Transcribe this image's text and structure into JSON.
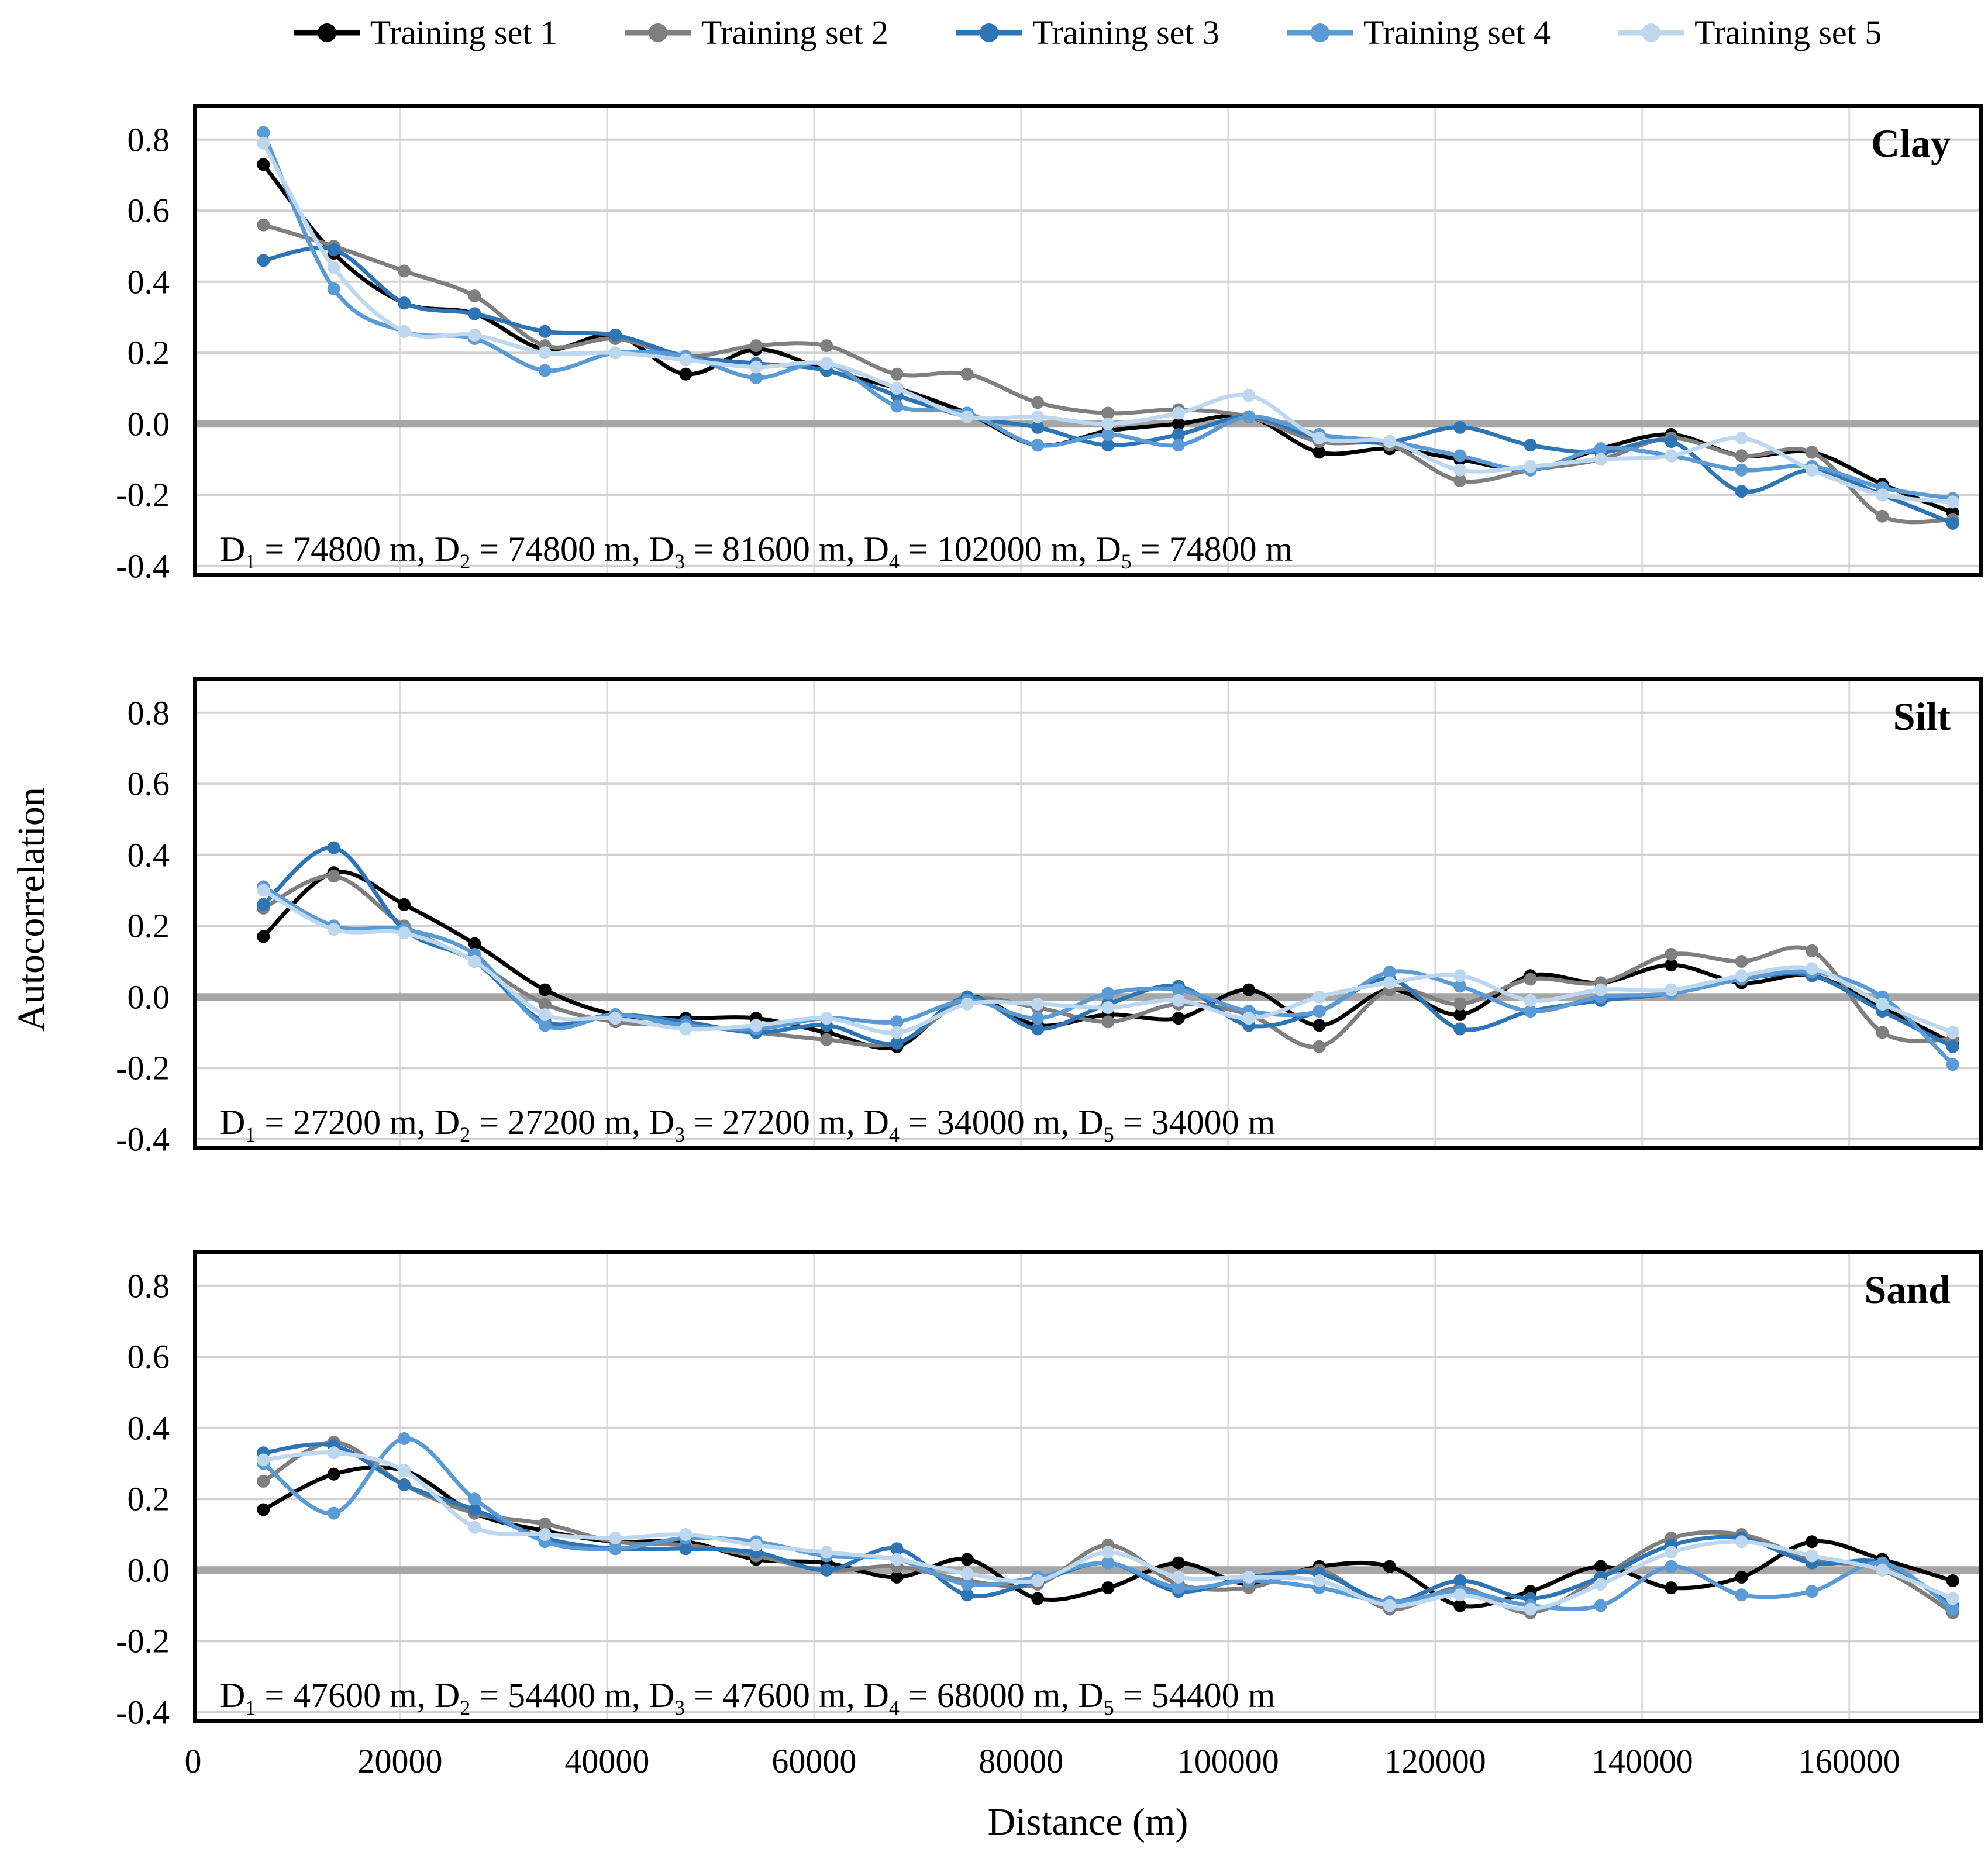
{
  "chart_data": {
    "type": "line",
    "xlabel": "Distance (m)",
    "ylabel": "Autocorrelation",
    "xlim": [
      0,
      172900
    ],
    "ylim": [
      -0.43,
      0.9
    ],
    "grid": true,
    "colors": {
      "grid_vertical": "#dcdcdc",
      "grid_horizontal": "#d2d2d2",
      "zero_line": "#a6a6a6",
      "axis_border": "#000000"
    },
    "x_ticks": [
      {
        "label": "0",
        "value": 0
      },
      {
        "label": "20000",
        "value": 20000
      },
      {
        "label": "40000",
        "value": 40000
      },
      {
        "label": "60000",
        "value": 60000
      },
      {
        "label": "80000",
        "value": 80000
      },
      {
        "label": "100000",
        "value": 100000
      },
      {
        "label": "120000",
        "value": 120000
      },
      {
        "label": "140000",
        "value": 140000
      },
      {
        "label": "160000",
        "value": 160000
      }
    ],
    "y_ticks": [
      {
        "label": "0.8",
        "value": 0.8
      },
      {
        "label": "0.6",
        "value": 0.6
      },
      {
        "label": "0.4",
        "value": 0.4
      },
      {
        "label": "0.2",
        "value": 0.2
      },
      {
        "label": "0.0",
        "value": 0.0
      },
      {
        "label": "-0.2",
        "value": -0.2
      },
      {
        "label": "-0.4",
        "value": -0.4
      }
    ],
    "legend": {
      "position": "top",
      "entries": [
        {
          "label": "Training set 1",
          "color": "#000000"
        },
        {
          "label": "Training set 2",
          "color": "#7f7f7f"
        },
        {
          "label": "Training set 3",
          "color": "#2e75b6"
        },
        {
          "label": "Training set 4",
          "color": "#5b9bd5"
        },
        {
          "label": "Training set 5",
          "color": "#bdd7ee"
        }
      ]
    },
    "x": [
      6800,
      13600,
      20400,
      27200,
      34000,
      40800,
      47600,
      54400,
      61200,
      68000,
      74800,
      81600,
      88400,
      95200,
      102000,
      108800,
      115600,
      122400,
      129200,
      136000,
      142800,
      149600,
      156400,
      163200,
      170000
    ],
    "panels": [
      {
        "title": "Clay",
        "d_values": [
          "74800 m",
          "74800 m",
          "81600 m",
          "102000 m",
          "74800 m"
        ],
        "series": [
          {
            "name": "Training set 1",
            "color": "#000000",
            "values": [
              0.73,
              0.48,
              0.34,
              0.31,
              0.21,
              0.25,
              0.14,
              0.21,
              0.15,
              0.1,
              0.03,
              -0.06,
              -0.02,
              0.0,
              0.02,
              -0.08,
              -0.07,
              -0.1,
              -0.13,
              -0.07,
              -0.03,
              -0.09,
              -0.08,
              -0.17,
              -0.25
            ]
          },
          {
            "name": "Training set 2",
            "color": "#7f7f7f",
            "values": [
              0.56,
              0.5,
              0.43,
              0.36,
              0.22,
              0.24,
              0.19,
              0.22,
              0.22,
              0.14,
              0.14,
              0.06,
              0.03,
              0.04,
              0.02,
              -0.05,
              -0.06,
              -0.16,
              -0.13,
              -0.1,
              -0.04,
              -0.09,
              -0.08,
              -0.26,
              -0.27
            ]
          },
          {
            "name": "Training set 3",
            "color": "#2e75b6",
            "values": [
              0.46,
              0.49,
              0.34,
              0.31,
              0.26,
              0.25,
              0.19,
              0.17,
              0.15,
              0.08,
              0.02,
              -0.01,
              -0.06,
              -0.03,
              0.02,
              -0.04,
              -0.05,
              -0.01,
              -0.06,
              -0.08,
              -0.05,
              -0.19,
              -0.13,
              -0.2,
              -0.28
            ]
          },
          {
            "name": "Training set 4",
            "color": "#5b9bd5",
            "values": [
              0.82,
              0.38,
              0.26,
              0.24,
              0.15,
              0.2,
              0.19,
              0.13,
              0.17,
              0.05,
              0.03,
              -0.06,
              -0.03,
              -0.06,
              0.02,
              -0.03,
              -0.05,
              -0.09,
              -0.13,
              -0.07,
              -0.09,
              -0.13,
              -0.12,
              -0.18,
              -0.21
            ]
          },
          {
            "name": "Training set 5",
            "color": "#bdd7ee",
            "values": [
              0.79,
              0.44,
              0.26,
              0.25,
              0.2,
              0.2,
              0.18,
              0.16,
              0.17,
              0.1,
              0.02,
              0.02,
              0.0,
              0.03,
              0.08,
              -0.04,
              -0.05,
              -0.13,
              -0.12,
              -0.1,
              -0.09,
              -0.04,
              -0.13,
              -0.2,
              -0.22
            ]
          }
        ]
      },
      {
        "title": "Silt",
        "d_values": [
          "27200 m",
          "27200 m",
          "27200 m",
          "34000 m",
          "34000 m"
        ],
        "series": [
          {
            "name": "Training set 1",
            "color": "#000000",
            "values": [
              0.17,
              0.35,
              0.26,
              0.15,
              0.02,
              -0.05,
              -0.06,
              -0.06,
              -0.1,
              -0.14,
              0.0,
              -0.08,
              -0.05,
              -0.06,
              0.02,
              -0.08,
              0.02,
              -0.05,
              0.06,
              0.04,
              0.09,
              0.04,
              0.06,
              -0.03,
              -0.13
            ]
          },
          {
            "name": "Training set 2",
            "color": "#7f7f7f",
            "values": [
              0.25,
              0.34,
              0.2,
              0.1,
              -0.02,
              -0.07,
              -0.08,
              -0.1,
              -0.12,
              -0.13,
              -0.01,
              -0.03,
              -0.07,
              -0.02,
              -0.05,
              -0.14,
              0.02,
              -0.02,
              0.05,
              0.04,
              0.12,
              0.1,
              0.13,
              -0.1,
              -0.12
            ]
          },
          {
            "name": "Training set 3",
            "color": "#2e75b6",
            "values": [
              0.26,
              0.42,
              0.19,
              0.1,
              -0.07,
              -0.05,
              -0.07,
              -0.1,
              -0.08,
              -0.13,
              0.0,
              -0.09,
              -0.02,
              0.03,
              -0.08,
              -0.04,
              0.05,
              -0.09,
              -0.04,
              -0.01,
              0.01,
              0.05,
              0.06,
              -0.04,
              -0.14
            ]
          },
          {
            "name": "Training set 4",
            "color": "#5b9bd5",
            "values": [
              0.31,
              0.2,
              0.19,
              0.12,
              -0.08,
              -0.05,
              -0.08,
              -0.09,
              -0.06,
              -0.07,
              -0.01,
              -0.06,
              0.01,
              0.02,
              -0.04,
              -0.04,
              0.07,
              0.03,
              -0.04,
              0.0,
              0.01,
              0.05,
              0.07,
              0.0,
              -0.19
            ]
          },
          {
            "name": "Training set 5",
            "color": "#bdd7ee",
            "values": [
              0.3,
              0.19,
              0.18,
              0.1,
              -0.05,
              -0.06,
              -0.09,
              -0.08,
              -0.06,
              -0.1,
              -0.02,
              -0.02,
              -0.03,
              -0.01,
              -0.06,
              0.0,
              0.04,
              0.06,
              -0.01,
              0.02,
              0.02,
              0.06,
              0.08,
              -0.02,
              -0.1
            ]
          }
        ]
      },
      {
        "title": "Sand",
        "d_values": [
          "47600 m",
          "54400 m",
          "47600 m",
          "68000 m",
          "54400 m"
        ],
        "series": [
          {
            "name": "Training set 1",
            "color": "#000000",
            "values": [
              0.17,
              0.27,
              0.28,
              0.16,
              0.11,
              0.08,
              0.08,
              0.03,
              0.02,
              -0.02,
              0.03,
              -0.08,
              -0.05,
              0.02,
              -0.04,
              0.01,
              0.01,
              -0.1,
              -0.06,
              0.01,
              -0.05,
              -0.02,
              0.08,
              0.03,
              -0.03
            ]
          },
          {
            "name": "Training set 2",
            "color": "#7f7f7f",
            "values": [
              0.25,
              0.36,
              0.24,
              0.16,
              0.13,
              0.08,
              0.07,
              0.04,
              0.0,
              0.01,
              -0.03,
              -0.04,
              0.07,
              -0.04,
              -0.05,
              0.0,
              -0.11,
              -0.05,
              -0.12,
              -0.02,
              0.09,
              0.1,
              0.03,
              0.0,
              -0.12
            ]
          },
          {
            "name": "Training set 3",
            "color": "#2e75b6",
            "values": [
              0.33,
              0.35,
              0.24,
              0.17,
              0.09,
              0.06,
              0.06,
              0.05,
              0.0,
              0.06,
              -0.07,
              -0.03,
              0.02,
              -0.06,
              -0.02,
              -0.01,
              -0.09,
              -0.03,
              -0.08,
              -0.02,
              0.07,
              0.09,
              0.02,
              0.02,
              -0.1
            ]
          },
          {
            "name": "Training set 4",
            "color": "#5b9bd5",
            "values": [
              0.3,
              0.16,
              0.37,
              0.2,
              0.08,
              0.06,
              0.09,
              0.08,
              0.04,
              0.03,
              -0.04,
              -0.02,
              0.02,
              -0.05,
              -0.03,
              -0.05,
              -0.09,
              -0.06,
              -0.1,
              -0.1,
              0.01,
              -0.07,
              -0.06,
              0.02,
              -0.11
            ]
          },
          {
            "name": "Training set 5",
            "color": "#bdd7ee",
            "values": [
              0.31,
              0.33,
              0.28,
              0.12,
              0.1,
              0.09,
              0.1,
              0.07,
              0.05,
              0.03,
              -0.01,
              -0.03,
              0.05,
              -0.02,
              -0.02,
              -0.03,
              -0.1,
              -0.07,
              -0.11,
              -0.04,
              0.05,
              0.08,
              0.04,
              0.0,
              -0.08
            ]
          }
        ]
      }
    ]
  }
}
